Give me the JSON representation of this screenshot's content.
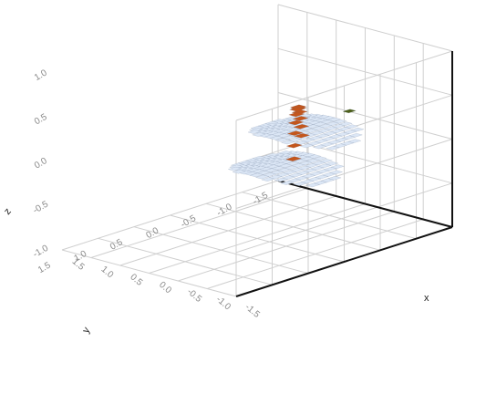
{
  "chart_data": {
    "type": "scatter",
    "title": "",
    "style": "3d-voxel",
    "colors": {
      "grid": "#cfcfcf",
      "axis": "#111111",
      "tick_label": "#8a8a8a",
      "voxel_blue": "#dbe6f5",
      "voxel_orange": "#c4561c",
      "marker_green": "#4d5f1a"
    },
    "axes": {
      "x": {
        "label": "x",
        "ticks": [
          "1.5",
          "1.0",
          "0.5",
          "0.0",
          "-0.5",
          "-1.0",
          "-1.5"
        ],
        "range": [
          -1.5,
          1.5
        ]
      },
      "y": {
        "label": "y",
        "ticks": [
          "-1.5",
          "-1.0",
          "-0.5",
          "0.0",
          "0.5",
          "1.0",
          "1.5"
        ],
        "range": [
          -1.5,
          1.5
        ]
      },
      "z": {
        "label": "z",
        "ticks": [
          "-1.0",
          "-0.5",
          "0.0",
          "0.5",
          "1.0"
        ],
        "range": [
          -1.0,
          1.0
        ]
      }
    },
    "grid": true,
    "series": [
      {
        "color": "#dbe6f5",
        "shape": "disc",
        "center": [
          -0.2,
          -0.5,
          0.0
        ],
        "radius": 0.75
      },
      {
        "color": "#dbe6f5",
        "shape": "disc",
        "center": [
          -1.1,
          0.5,
          0.0
        ],
        "radius": 0.75
      },
      {
        "color": "#c4561c",
        "shape": "arc",
        "from": [
          -0.4,
          -0.3,
          0.1
        ],
        "to": [
          -1.0,
          0.3,
          0.1
        ],
        "count": 12
      },
      {
        "color": "#4d5f1a",
        "shape": "marker",
        "center": [
          -0.1,
          -1.2,
          0.1
        ]
      }
    ]
  }
}
